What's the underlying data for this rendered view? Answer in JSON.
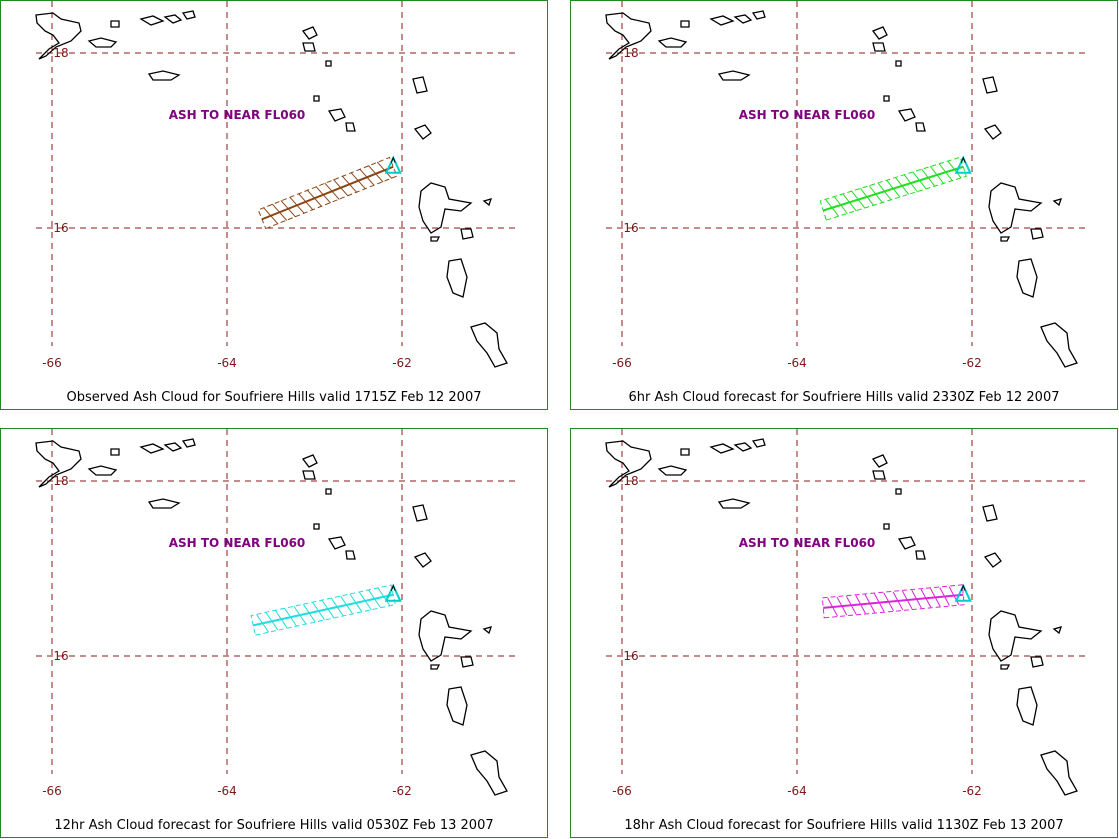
{
  "panels": [
    {
      "caption": "Observed Ash Cloud for Soufriere  Hills valid 1715Z Feb 12 2007",
      "note": "ASH TO NEAR FL060",
      "plume_color": "#8b4513",
      "plume_tail": {
        "lon": -63.6,
        "lat": 16.1
      },
      "plume_head": {
        "lon": -62.1,
        "lat": 16.7
      }
    },
    {
      "caption": "6hr Ash Cloud forecast for Soufriere  Hills valid 2330Z Feb 12 2007",
      "note": "ASH TO NEAR FL060",
      "plume_color": "#22dd22",
      "plume_tail": {
        "lon": -63.7,
        "lat": 16.2
      },
      "plume_head": {
        "lon": -62.1,
        "lat": 16.7
      }
    },
    {
      "caption": "12hr Ash Cloud forecast for Soufriere  Hills valid 0530Z Feb 13 2007",
      "note": "ASH TO NEAR FL060",
      "plume_color": "#22dddd",
      "plume_tail": {
        "lon": -63.7,
        "lat": 16.35
      },
      "plume_head": {
        "lon": -62.1,
        "lat": 16.7
      }
    },
    {
      "caption": "18hr Ash Cloud forecast for Soufriere  Hills valid 1130Z Feb 13 2007",
      "note": "ASH TO NEAR FL060",
      "plume_color": "#dd22dd",
      "plume_tail": {
        "lon": -63.7,
        "lat": 16.55
      },
      "plume_head": {
        "lon": -62.1,
        "lat": 16.7
      }
    }
  ],
  "grid": {
    "lon_ticks": [
      "-66",
      "-64",
      "-62"
    ],
    "lat_ticks": [
      "18",
      "16"
    ],
    "color": "#8b1a1a"
  },
  "volcano_symbol": "volcano-triangle-icon",
  "volcano_color": "#00cccc"
}
